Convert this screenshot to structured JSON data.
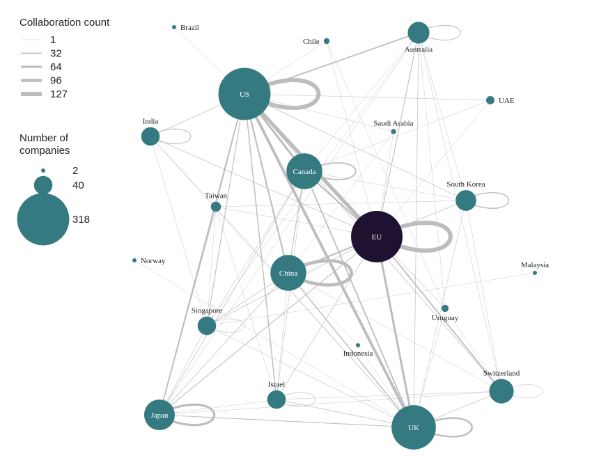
{
  "legend": {
    "collab_title": "Collaboration count",
    "collab_items": [
      {
        "label": "1",
        "value": 1
      },
      {
        "label": "32",
        "value": 32
      },
      {
        "label": "64",
        "value": 64
      },
      {
        "label": "96",
        "value": 96
      },
      {
        "label": "127",
        "value": 127
      }
    ],
    "companies_title_line1": "Number  of",
    "companies_title_line2": "companies",
    "companies_items": [
      {
        "label": "2",
        "value": 2
      },
      {
        "label": "40",
        "value": 40
      },
      {
        "label": "318",
        "value": 318
      }
    ]
  },
  "colors": {
    "node": "#357a81",
    "eu_node": "#1e1230",
    "edge": "#bdbdbd",
    "text": "#222222"
  },
  "nodes": [
    {
      "id": "US",
      "label": "US",
      "companies": 318
    },
    {
      "id": "EU",
      "label": "EU",
      "companies": 310
    },
    {
      "id": "UK",
      "label": "UK",
      "companies": 230
    },
    {
      "id": "Canada",
      "label": "Canada",
      "companies": 150
    },
    {
      "id": "China",
      "label": "China",
      "companies": 150
    },
    {
      "id": "Japan",
      "label": "Japan",
      "companies": 110
    },
    {
      "id": "Switzerland",
      "label": "Switzerland",
      "companies": 70
    },
    {
      "id": "Australia",
      "label": "Australia",
      "companies": 55
    },
    {
      "id": "South Korea",
      "label": "South Korea",
      "companies": 50
    },
    {
      "id": "Singapore",
      "label": "Singapore",
      "companies": 40
    },
    {
      "id": "Israel",
      "label": "Israel",
      "companies": 40
    },
    {
      "id": "India",
      "label": "India",
      "companies": 40
    },
    {
      "id": "Taiwan",
      "label": "Taiwan",
      "companies": 12
    },
    {
      "id": "UAE",
      "label": "UAE",
      "companies": 8
    },
    {
      "id": "Uruguay",
      "label": "Uruguay",
      "companies": 6
    },
    {
      "id": "Chile",
      "label": "Chile",
      "companies": 4
    },
    {
      "id": "Saudi Arabia",
      "label": "Saudi Arabia",
      "companies": 3
    },
    {
      "id": "Brazil",
      "label": "Brazil",
      "companies": 2
    },
    {
      "id": "Norway",
      "label": "Norway",
      "companies": 2
    },
    {
      "id": "Malaysia",
      "label": "Malaysia",
      "companies": 2
    },
    {
      "id": "Indonesia",
      "label": "Indonesia",
      "companies": 2
    }
  ],
  "edges": [
    {
      "source": "US",
      "target": "US",
      "count": 127
    },
    {
      "source": "EU",
      "target": "EU",
      "count": 127
    },
    {
      "source": "China",
      "target": "China",
      "count": 96
    },
    {
      "source": "Japan",
      "target": "Japan",
      "count": 64
    },
    {
      "source": "UK",
      "target": "UK",
      "count": 48
    },
    {
      "source": "Canada",
      "target": "Canada",
      "count": 32
    },
    {
      "source": "Australia",
      "target": "Australia",
      "count": 16
    },
    {
      "source": "South Korea",
      "target": "South Korea",
      "count": 24
    },
    {
      "source": "India",
      "target": "India",
      "count": 16
    },
    {
      "source": "Israel",
      "target": "Israel",
      "count": 8
    },
    {
      "source": "Singapore",
      "target": "Singapore",
      "count": 4
    },
    {
      "source": "Switzerland",
      "target": "Switzerland",
      "count": 4
    },
    {
      "source": "US",
      "target": "EU",
      "count": 110
    },
    {
      "source": "US",
      "target": "UK",
      "count": 80
    },
    {
      "source": "US",
      "target": "Canada",
      "count": 60
    },
    {
      "source": "US",
      "target": "China",
      "count": 40
    },
    {
      "source": "US",
      "target": "Japan",
      "count": 32
    },
    {
      "source": "US",
      "target": "Australia",
      "count": 32
    },
    {
      "source": "US",
      "target": "Israel",
      "count": 24
    },
    {
      "source": "US",
      "target": "Singapore",
      "count": 16
    },
    {
      "source": "US",
      "target": "India",
      "count": 8
    },
    {
      "source": "US",
      "target": "South Korea",
      "count": 8
    },
    {
      "source": "US",
      "target": "Switzerland",
      "count": 8
    },
    {
      "source": "US",
      "target": "UAE",
      "count": 4
    },
    {
      "source": "US",
      "target": "Taiwan",
      "count": 4
    },
    {
      "source": "US",
      "target": "Brazil",
      "count": 1
    },
    {
      "source": "US",
      "target": "Chile",
      "count": 1
    },
    {
      "source": "US",
      "target": "Saudi Arabia",
      "count": 1
    },
    {
      "source": "EU",
      "target": "UK",
      "count": 60
    },
    {
      "source": "EU",
      "target": "Canada",
      "count": 40
    },
    {
      "source": "EU",
      "target": "China",
      "count": 40
    },
    {
      "source": "EU",
      "target": "Switzerland",
      "count": 32
    },
    {
      "source": "EU",
      "target": "Japan",
      "count": 16
    },
    {
      "source": "EU",
      "target": "Australia",
      "count": 16
    },
    {
      "source": "EU",
      "target": "South Korea",
      "count": 8
    },
    {
      "source": "EU",
      "target": "Singapore",
      "count": 8
    },
    {
      "source": "EU",
      "target": "Israel",
      "count": 8
    },
    {
      "source": "EU",
      "target": "India",
      "count": 8
    },
    {
      "source": "EU",
      "target": "Uruguay",
      "count": 4
    },
    {
      "source": "EU",
      "target": "Saudi Arabia",
      "count": 2
    },
    {
      "source": "EU",
      "target": "UAE",
      "count": 2
    },
    {
      "source": "EU",
      "target": "Taiwan",
      "count": 2
    },
    {
      "source": "EU",
      "target": "Chile",
      "count": 1
    },
    {
      "source": "UK",
      "target": "Canada",
      "count": 32
    },
    {
      "source": "UK",
      "target": "China",
      "count": 24
    },
    {
      "source": "UK",
      "target": "Japan",
      "count": 16
    },
    {
      "source": "UK",
      "target": "Switzerland",
      "count": 8
    },
    {
      "source": "UK",
      "target": "Australia",
      "count": 8
    },
    {
      "source": "UK",
      "target": "Israel",
      "count": 8
    },
    {
      "source": "UK",
      "target": "Singapore",
      "count": 4
    },
    {
      "source": "UK",
      "target": "India",
      "count": 4
    },
    {
      "source": "UK",
      "target": "South Korea",
      "count": 4
    },
    {
      "source": "UK",
      "target": "Uruguay",
      "count": 2
    },
    {
      "source": "UK",
      "target": "Taiwan",
      "count": 2
    },
    {
      "source": "UK",
      "target": "Indonesia",
      "count": 1
    },
    {
      "source": "Canada",
      "target": "China",
      "count": 16
    },
    {
      "source": "Canada",
      "target": "Japan",
      "count": 8
    },
    {
      "source": "Canada",
      "target": "Israel",
      "count": 4
    },
    {
      "source": "Canada",
      "target": "Singapore",
      "count": 4
    },
    {
      "source": "Canada",
      "target": "South Korea",
      "count": 2
    },
    {
      "source": "Canada",
      "target": "Australia",
      "count": 2
    },
    {
      "source": "China",
      "target": "Japan",
      "count": 8
    },
    {
      "source": "China",
      "target": "Singapore",
      "count": 8
    },
    {
      "source": "China",
      "target": "Switzerland",
      "count": 2
    },
    {
      "source": "China",
      "target": "Indonesia",
      "count": 1
    },
    {
      "source": "China",
      "target": "Israel",
      "count": 2
    },
    {
      "source": "China",
      "target": "South Korea",
      "count": 2
    },
    {
      "source": "Japan",
      "target": "Singapore",
      "count": 4
    },
    {
      "source": "Japan",
      "target": "Israel",
      "count": 2
    },
    {
      "source": "Japan",
      "target": "Taiwan",
      "count": 16
    },
    {
      "source": "Japan",
      "target": "Switzerland",
      "count": 2
    },
    {
      "source": "Japan",
      "target": "Australia",
      "count": 2
    },
    {
      "source": "Singapore",
      "target": "Australia",
      "count": 2
    },
    {
      "source": "Singapore",
      "target": "Malaysia",
      "count": 1
    },
    {
      "source": "Singapore",
      "target": "Taiwan",
      "count": 2
    },
    {
      "source": "India",
      "target": "Singapore",
      "count": 2
    },
    {
      "source": "India",
      "target": "Taiwan",
      "count": 1
    },
    {
      "source": "Israel",
      "target": "Switzerland",
      "count": 2
    },
    {
      "source": "Israel",
      "target": "Taiwan",
      "count": 1
    },
    {
      "source": "South Korea",
      "target": "Switzerland",
      "count": 2
    },
    {
      "source": "South Korea",
      "target": "Taiwan",
      "count": 2
    },
    {
      "source": "Australia",
      "target": "Switzerland",
      "count": 2
    },
    {
      "source": "Australia",
      "target": "South Korea",
      "count": 2
    },
    {
      "source": "Australia",
      "target": "Uruguay",
      "count": 1
    },
    {
      "source": "Norway",
      "target": "UK",
      "count": 1
    },
    {
      "source": "Chile",
      "target": "Uruguay",
      "count": 1
    },
    {
      "source": "UAE",
      "target": "Canada",
      "count": 1
    },
    {
      "source": "Uruguay",
      "target": "Switzerland",
      "count": 1
    },
    {
      "source": "Saudi Arabia",
      "target": "China",
      "count": 1
    }
  ]
}
